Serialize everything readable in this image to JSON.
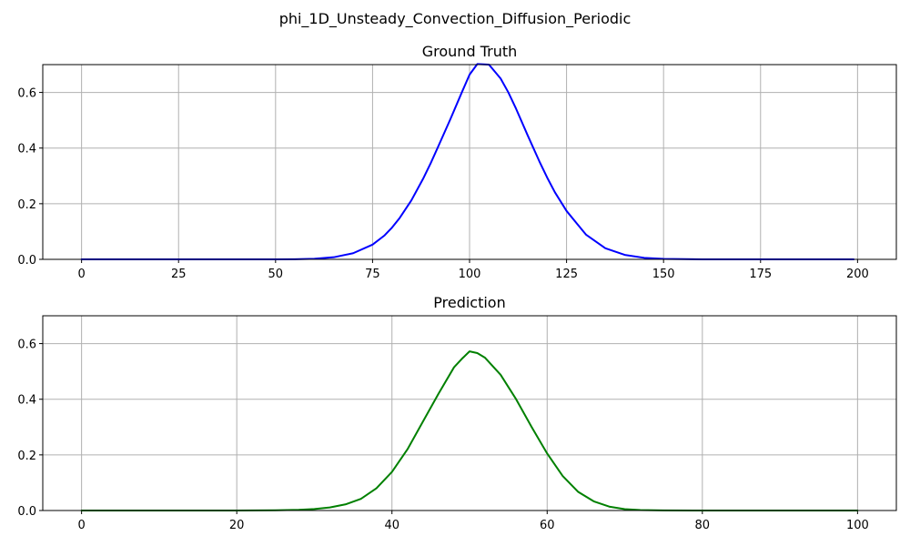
{
  "figure": {
    "suptitle": "phi_1D_Unsteady_Convection_Diffusion_Periodic"
  },
  "chart_data": [
    {
      "type": "line",
      "title": "Ground Truth",
      "xlabel": "",
      "ylabel": "",
      "xlim": [
        -10,
        210
      ],
      "ylim": [
        0,
        0.7
      ],
      "xticks": [
        0,
        25,
        50,
        75,
        100,
        125,
        150,
        175,
        200
      ],
      "yticks": [
        0.0,
        0.2,
        0.4,
        0.6
      ],
      "grid": true,
      "series": [
        {
          "color": "#0000ff",
          "x": [
            0,
            10,
            20,
            30,
            40,
            50,
            55,
            60,
            65,
            70,
            75,
            78,
            80,
            82,
            85,
            88,
            90,
            92,
            95,
            98,
            100,
            102,
            105,
            108,
            110,
            112,
            115,
            118,
            120,
            122,
            125,
            130,
            135,
            140,
            145,
            150,
            160,
            170,
            180,
            190,
            199
          ],
          "y": [
            0,
            0,
            0,
            0,
            0,
            0,
            0.0005,
            0.0022,
            0.0076,
            0.022,
            0.053,
            0.085,
            0.114,
            0.149,
            0.212,
            0.289,
            0.346,
            0.408,
            0.502,
            0.6,
            0.664,
            0.702,
            0.7,
            0.65,
            0.6,
            0.541,
            0.445,
            0.352,
            0.294,
            0.241,
            0.174,
            0.089,
            0.04,
            0.016,
            0.0055,
            0.0016,
            0.0001,
            0,
            0,
            0,
            0
          ]
        }
      ]
    },
    {
      "type": "line",
      "title": "Prediction",
      "xlabel": "",
      "ylabel": "",
      "xlim": [
        -5,
        105
      ],
      "ylim": [
        0,
        0.7
      ],
      "xticks": [
        0,
        20,
        40,
        60,
        80,
        100
      ],
      "yticks": [
        0.0,
        0.2,
        0.4,
        0.6
      ],
      "grid": true,
      "series": [
        {
          "color": "#008000",
          "x": [
            0,
            10,
            20,
            25,
            28,
            30,
            32,
            34,
            36,
            38,
            40,
            42,
            44,
            46,
            48,
            49,
            50,
            51,
            52,
            54,
            56,
            58,
            60,
            62,
            64,
            66,
            68,
            70,
            72,
            75,
            80,
            90,
            100
          ],
          "y": [
            0,
            0,
            0,
            0.0007,
            0.0025,
            0.0055,
            0.011,
            0.022,
            0.042,
            0.08,
            0.139,
            0.22,
            0.32,
            0.42,
            0.515,
            0.545,
            0.572,
            0.566,
            0.549,
            0.488,
            0.4,
            0.3,
            0.205,
            0.124,
            0.067,
            0.033,
            0.014,
            0.005,
            0.0017,
            0.0003,
            0,
            0,
            0
          ]
        }
      ]
    }
  ]
}
